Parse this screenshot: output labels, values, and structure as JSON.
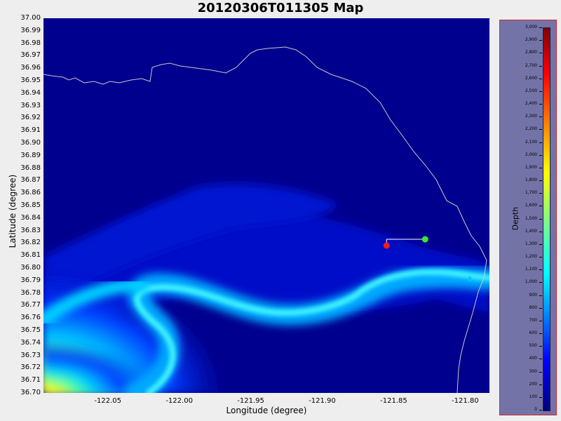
{
  "title": "20120306T011305 Map",
  "x_axis": {
    "label": "Longitude (degree)",
    "ticks": [
      "-122.05",
      "-122.00",
      "-121.95",
      "-121.90",
      "-121.85",
      "-121.80"
    ],
    "range": [
      -122.095,
      -121.783
    ]
  },
  "y_axis": {
    "label": "Latitude (degree)",
    "ticks": [
      "37.00",
      "36.99",
      "36.98",
      "36.97",
      "36.96",
      "36.95",
      "36.94",
      "36.93",
      "36.92",
      "36.91",
      "36.90",
      "36.89",
      "36.88",
      "36.87",
      "36.86",
      "36.85",
      "36.84",
      "36.83",
      "36.82",
      "36.81",
      "36.80",
      "36.79",
      "36.78",
      "36.77",
      "36.76",
      "36.75",
      "36.74",
      "36.73",
      "36.72",
      "36.71",
      "36.70"
    ],
    "range": [
      36.7,
      37.0
    ]
  },
  "legend": {
    "label": "Depth",
    "ticks": [
      "3,000",
      "2,900",
      "2,800",
      "2,700",
      "2,600",
      "2,500",
      "2,400",
      "2,300",
      "2,200",
      "2,100",
      "2,000",
      "1,900",
      "1,800",
      "1,700",
      "1,600",
      "1,500",
      "1,400",
      "1,300",
      "1,200",
      "1,100",
      "1,000",
      "900",
      "800",
      "700",
      "600",
      "500",
      "400",
      "300",
      "200",
      "100",
      "0"
    ],
    "range": [
      0,
      3000
    ]
  },
  "markers": {
    "start": {
      "color": "#ff1a1a",
      "lon": -121.855,
      "lat": 36.818
    },
    "end": {
      "color": "#33ee33",
      "lon": -121.828,
      "lat": 36.823
    }
  },
  "colors": {
    "background": "#00008e",
    "coastline": "#c8c8c8",
    "panel": "#7373a8",
    "panel_border": "#d4262d"
  }
}
